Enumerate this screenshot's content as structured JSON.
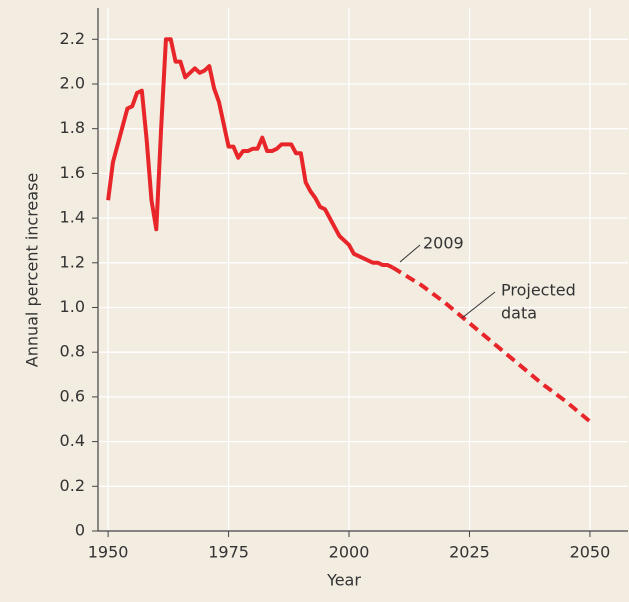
{
  "chart_data": {
    "type": "line",
    "xlabel": "Year",
    "ylabel": "Annual percent increase",
    "series": [
      {
        "style": "solid",
        "color": "#e8262a",
        "x": [
          1950,
          1951,
          1952,
          1953,
          1954,
          1955,
          1956,
          1957,
          1958,
          1959,
          1960,
          1961,
          1962,
          1963,
          1964,
          1965,
          1966,
          1967,
          1968,
          1969,
          1970,
          1971,
          1972,
          1973,
          1974,
          1975,
          1976,
          1977,
          1978,
          1979,
          1980,
          1981,
          1982,
          1983,
          1984,
          1985,
          1986,
          1987,
          1988,
          1989,
          1990,
          1991,
          1992,
          1993,
          1994,
          1995,
          1996,
          1997,
          1998,
          1999,
          2000,
          2001,
          2002,
          2003,
          2004,
          2005,
          2006,
          2007,
          2008,
          2009
        ],
        "values": [
          1.48,
          1.65,
          1.73,
          1.81,
          1.89,
          1.9,
          1.96,
          1.97,
          1.75,
          1.48,
          1.35,
          1.8,
          2.2,
          2.2,
          2.1,
          2.1,
          2.03,
          2.05,
          2.07,
          2.05,
          2.06,
          2.08,
          1.98,
          1.92,
          1.82,
          1.72,
          1.72,
          1.67,
          1.7,
          1.7,
          1.71,
          1.71,
          1.76,
          1.7,
          1.7,
          1.71,
          1.73,
          1.73,
          1.73,
          1.69,
          1.69,
          1.56,
          1.52,
          1.49,
          1.45,
          1.44,
          1.4,
          1.36,
          1.32,
          1.3,
          1.28,
          1.24,
          1.23,
          1.22,
          1.21,
          1.2,
          1.2,
          1.19,
          1.19,
          1.18
        ]
      },
      {
        "style": "dashed",
        "color": "#e8262a",
        "x": [
          2009,
          2015,
          2020,
          2025,
          2030,
          2035,
          2040,
          2045,
          2050
        ],
        "values": [
          1.18,
          1.1,
          1.02,
          0.93,
          0.84,
          0.75,
          0.66,
          0.58,
          0.49
        ]
      }
    ],
    "annotations": [
      {
        "lines": [
          "2009"
        ]
      },
      {
        "lines": [
          "Projected",
          "data"
        ]
      }
    ],
    "xlim": [
      1947.9,
      2057.9
    ],
    "xticks": [
      1950,
      1975,
      2000,
      2025,
      2050
    ],
    "ylim": [
      0,
      2.34
    ],
    "yticks": [
      0,
      0.2,
      0.4,
      0.6,
      0.8,
      {
        "value": 1,
        "label": "1.0"
      },
      1.2,
      1.4,
      1.6,
      1.8,
      {
        "value": 2,
        "label": "2.0"
      },
      2.2
    ],
    "grid": true
  }
}
